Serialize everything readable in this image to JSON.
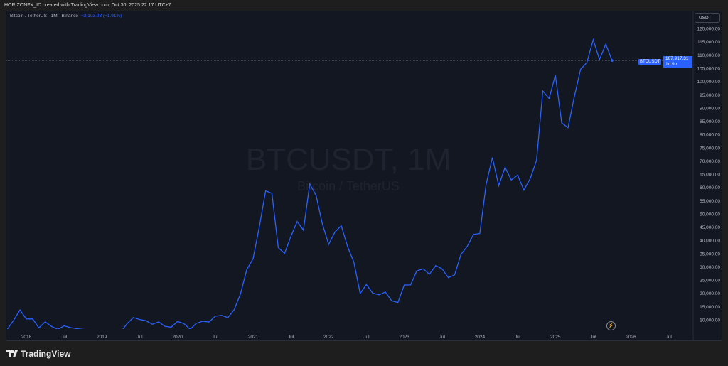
{
  "header": {
    "text": "HORIZONFX_ID created with TradingView.com, Oct 30, 2025 22:17 UTC+7"
  },
  "legend": {
    "symbol": "Bitcoin / TetherUS · 1M · Binance",
    "change": "−2,103.98 (−1.91%)"
  },
  "currency": "USDT",
  "watermark": {
    "title": "BTCUSDT, 1M",
    "subtitle": "Bitcoin / TetherUS"
  },
  "price_label": {
    "symbol": "BTCUSDT",
    "price": "107,917.31",
    "countdown": "1d 9h"
  },
  "brand": "TradingView",
  "colors": {
    "line": "#2962ff",
    "price_line": "#f23645",
    "background": "#131722"
  },
  "chart_data": {
    "type": "line",
    "interval": "monthly",
    "start": "2017-09",
    "ylim": [
      6496,
      126470
    ],
    "y_scale": "linear",
    "grid": false,
    "y_ticks": [
      10000,
      15000,
      20000,
      25000,
      30000,
      35000,
      40000,
      45000,
      50000,
      55000,
      60000,
      65000,
      70000,
      75000,
      80000,
      85000,
      90000,
      95000,
      100000,
      105000,
      110000,
      115000,
      120000
    ],
    "y_tick_labels": [
      "10,000.00",
      "15,000.00",
      "20,000.00",
      "25,000.00",
      "30,000.00",
      "35,000.00",
      "40,000.00",
      "45,000.00",
      "50,000.00",
      "55,000.00",
      "60,000.00",
      "65,000.00",
      "70,000.00",
      "75,000.00",
      "80,000.00",
      "85,000.00",
      "90,000.00",
      "95,000.00",
      "100,000.00",
      "105,000.00",
      "110,000.00",
      "115,000.00",
      "120,000.00"
    ],
    "x_ticks": [
      "2018",
      "Jul",
      "2019",
      "Jul",
      "2020",
      "Jul",
      "2021",
      "Jul",
      "2022",
      "Jul",
      "2023",
      "Jul",
      "2024",
      "Jul",
      "2025",
      "Jul",
      "2026",
      "Jul"
    ],
    "values": [
      4378,
      6463,
      9838,
      13716,
      10285,
      10326,
      6923,
      9246,
      7485,
      6391,
      7729,
      7025,
      6626,
      6371,
      4041,
      3742,
      3458,
      3854,
      4105,
      5350,
      8574,
      10854,
      10085,
      9630,
      8293,
      9199,
      7546,
      7195,
      9352,
      8600,
      6410,
      8658,
      9448,
      9138,
      11335,
      11650,
      10777,
      13791,
      19695,
      28923,
      33092,
      45135,
      58740,
      57694,
      37253,
      35045,
      41462,
      47100,
      43824,
      61300,
      56950,
      46216,
      38466,
      43160,
      45510,
      37630,
      31801,
      19942,
      23293,
      20050,
      19423,
      20491,
      17164,
      16542,
      23125,
      23141,
      28465,
      29233,
      27210,
      30472,
      29232,
      25941,
      26962,
      34639,
      37724,
      42284,
      42580,
      61131,
      71280,
      60672,
      67540,
      62772,
      64628,
      58974,
      63328,
      70215,
      96405,
      93576,
      102430,
      84350,
      82550,
      94172,
      104591,
      107135,
      115764,
      108246,
      114049,
      107917
    ],
    "last_price": 107917.31
  }
}
